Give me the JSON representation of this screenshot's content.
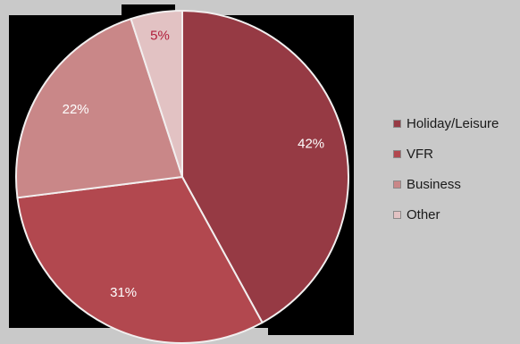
{
  "chart_data": {
    "type": "pie",
    "title": "",
    "slices": [
      {
        "label": "Holiday/Leisure",
        "value": 42,
        "display": "42%",
        "color": "#963a44"
      },
      {
        "label": "VFR",
        "value": 31,
        "display": "31%",
        "color": "#b2484f"
      },
      {
        "label": "Business",
        "value": 22,
        "display": "22%",
        "color": "#c98788"
      },
      {
        "label": "Other",
        "value": 5,
        "display": "5%",
        "color": "#e2c2c3"
      }
    ],
    "start_angle_deg": 0,
    "direction": "clockwise",
    "legend_position": "right"
  },
  "colors": {
    "background": "#c9c9c9",
    "backdrop": "#000000",
    "slice_border": "#f2efef",
    "label_light": "#ffffff",
    "label_dark": "#b01e3a"
  }
}
